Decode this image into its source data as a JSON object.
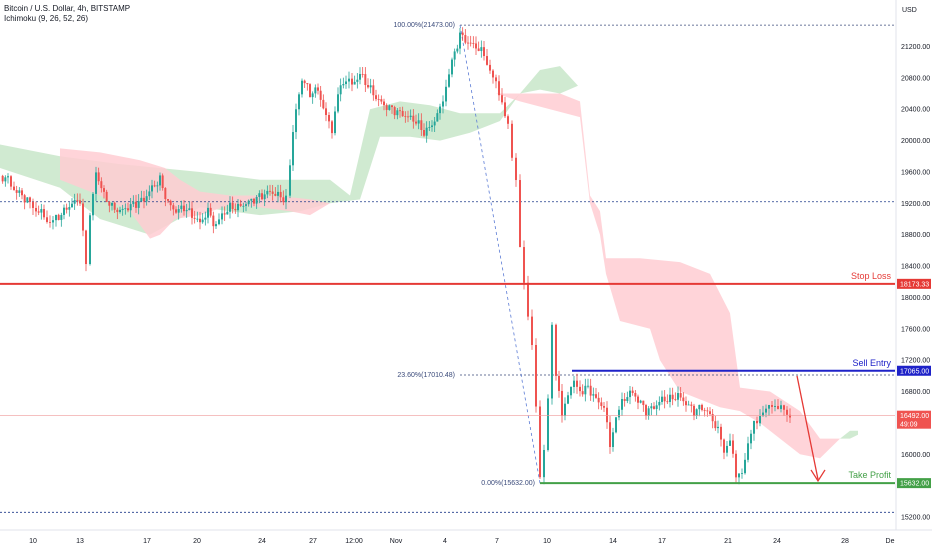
{
  "header": {
    "symbol": "Bitcoin / U.S. Dollar, 4h, BITSTAMP",
    "indicator": "Ichimoku (9, 26, 52, 26)"
  },
  "currency": "USD",
  "colors": {
    "up": "#26a69a",
    "down": "#ef5350",
    "cloud_bull": "#c8e6c9",
    "cloud_bear": "#ffcdd2",
    "stop_loss": "#e53935",
    "sell_entry": "#1e22c8",
    "take_profit": "#43a047",
    "fib": "#3a4a7a",
    "arrow": "#e53935"
  },
  "chart_data": {
    "type": "candlestick",
    "ylim": [
      15200,
      21600
    ],
    "y_ticks": [
      "21200.00",
      "20800.00",
      "20400.00",
      "20000.00",
      "19600.00",
      "19200.00",
      "18800.00",
      "18400.00",
      "18000.00",
      "17600.00",
      "17200.00",
      "16800.00",
      "16400.00",
      "16000.00",
      "15600.00",
      "15200.00"
    ],
    "x_ticks": [
      "10",
      "13",
      "17",
      "20",
      "24",
      "27",
      "12:00",
      "Nov",
      "4",
      "7",
      "10",
      "14",
      "17",
      "21",
      "24",
      "28",
      "De"
    ],
    "levels": {
      "stop_loss": {
        "label": "Stop Loss",
        "value": 18173.33,
        "tag": "18173.33"
      },
      "sell_entry": {
        "label": "Sell Entry",
        "value": 17065.0,
        "tag": "17065.00"
      },
      "take_profit": {
        "label": "Take Profit",
        "value": 15632.0,
        "tag": "15632.00"
      },
      "current": {
        "value": 16492.0,
        "tag": "16492.00",
        "countdown": "49:09"
      }
    },
    "fib_levels": [
      {
        "label": "100.00%(21473.00)",
        "value": 21473.0
      },
      {
        "label": "23.60%(17010.48)",
        "value": 17010.48
      },
      {
        "label": "0.00%(15632.00)",
        "value": 15632.0
      }
    ],
    "support_lines": [
      19220,
      15260
    ],
    "price_path": [
      [
        0,
        19550
      ],
      [
        8,
        19500
      ],
      [
        14,
        19380
      ],
      [
        22,
        19300
      ],
      [
        30,
        19200
      ],
      [
        36,
        19120
      ],
      [
        44,
        19050
      ],
      [
        50,
        18950
      ],
      [
        56,
        19000
      ],
      [
        64,
        19100
      ],
      [
        72,
        19200
      ],
      [
        80,
        19250
      ],
      [
        86,
        18400
      ],
      [
        90,
        19000
      ],
      [
        96,
        19600
      ],
      [
        104,
        19300
      ],
      [
        112,
        19150
      ],
      [
        120,
        19100
      ],
      [
        128,
        19150
      ],
      [
        136,
        19200
      ],
      [
        144,
        19250
      ],
      [
        152,
        19400
      ],
      [
        160,
        19500
      ],
      [
        168,
        19200
      ],
      [
        176,
        19100
      ],
      [
        184,
        19150
      ],
      [
        192,
        19050
      ],
      [
        200,
        18950
      ],
      [
        208,
        19100
      ],
      [
        216,
        18900
      ],
      [
        222,
        19050
      ],
      [
        230,
        19150
      ],
      [
        238,
        19150
      ],
      [
        246,
        19200
      ],
      [
        254,
        19250
      ],
      [
        262,
        19300
      ],
      [
        270,
        19350
      ],
      [
        278,
        19300
      ],
      [
        286,
        19250
      ],
      [
        290,
        19700
      ],
      [
        296,
        20400
      ],
      [
        302,
        20800
      ],
      [
        310,
        20600
      ],
      [
        318,
        20650
      ],
      [
        326,
        20300
      ],
      [
        332,
        20150
      ],
      [
        338,
        20600
      ],
      [
        346,
        20800
      ],
      [
        352,
        20700
      ],
      [
        360,
        20850
      ],
      [
        368,
        20700
      ],
      [
        376,
        20550
      ],
      [
        384,
        20450
      ],
      [
        392,
        20400
      ],
      [
        400,
        20350
      ],
      [
        408,
        20300
      ],
      [
        416,
        20250
      ],
      [
        424,
        20100
      ],
      [
        432,
        20200
      ],
      [
        440,
        20400
      ],
      [
        446,
        20700
      ],
      [
        452,
        21000
      ],
      [
        460,
        21350
      ],
      [
        468,
        21250
      ],
      [
        476,
        21200
      ],
      [
        484,
        21100
      ],
      [
        490,
        20900
      ],
      [
        496,
        20700
      ],
      [
        502,
        20500
      ],
      [
        508,
        20200
      ],
      [
        512,
        19800
      ],
      [
        516,
        19500
      ],
      [
        520,
        18700
      ],
      [
        524,
        18200
      ],
      [
        528,
        17800
      ],
      [
        532,
        17400
      ],
      [
        536,
        16600
      ],
      [
        540,
        15700
      ],
      [
        544,
        16000
      ],
      [
        548,
        16700
      ],
      [
        552,
        17600
      ],
      [
        556,
        17000
      ],
      [
        562,
        16500
      ],
      [
        568,
        16800
      ],
      [
        574,
        16900
      ],
      [
        580,
        16800
      ],
      [
        588,
        16850
      ],
      [
        596,
        16700
      ],
      [
        604,
        16600
      ],
      [
        610,
        16100
      ],
      [
        616,
        16500
      ],
      [
        622,
        16650
      ],
      [
        630,
        16800
      ],
      [
        638,
        16700
      ],
      [
        646,
        16550
      ],
      [
        654,
        16600
      ],
      [
        662,
        16700
      ],
      [
        670,
        16700
      ],
      [
        678,
        16750
      ],
      [
        686,
        16650
      ],
      [
        694,
        16550
      ],
      [
        702,
        16600
      ],
      [
        710,
        16500
      ],
      [
        718,
        16300
      ],
      [
        724,
        16050
      ],
      [
        730,
        16200
      ],
      [
        736,
        15700
      ],
      [
        742,
        15800
      ],
      [
        748,
        16100
      ],
      [
        754,
        16400
      ],
      [
        760,
        16500
      ],
      [
        766,
        16550
      ],
      [
        772,
        16650
      ],
      [
        778,
        16600
      ],
      [
        784,
        16550
      ],
      [
        790,
        16492
      ]
    ]
  }
}
